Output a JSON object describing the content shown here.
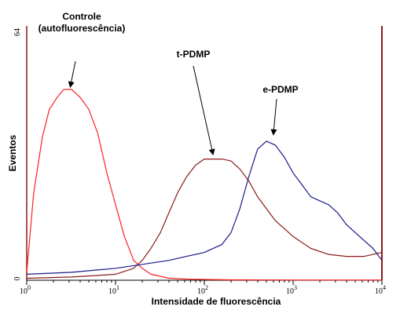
{
  "chart_data": {
    "type": "line",
    "xlabel": "Intensidade de fluorescência",
    "ylabel": "Eventos",
    "x_scale": "log",
    "xlim": [
      1,
      10000
    ],
    "ylim": [
      0,
      64
    ],
    "x_ticks": [
      {
        "value": 1,
        "base": "10",
        "exp": "0"
      },
      {
        "value": 10,
        "base": "10",
        "exp": "1"
      },
      {
        "value": 100,
        "base": "10",
        "exp": "2"
      },
      {
        "value": 1000,
        "base": "10",
        "exp": "3"
      },
      {
        "value": 10000,
        "base": "10",
        "exp": "4"
      }
    ],
    "y_ticks": [
      "0",
      "64"
    ],
    "grid": false,
    "series": [
      {
        "name": "Controle (autofluorescência)",
        "color": "#ff2020",
        "x": [
          1.0,
          1.2,
          1.5,
          1.8,
          2.2,
          2.6,
          3.2,
          4.0,
          5.0,
          6.3,
          8.0,
          10,
          12.6,
          16,
          20,
          25,
          32,
          40,
          63,
          100,
          200,
          1000,
          10000
        ],
        "y": [
          2,
          22,
          36,
          43,
          46,
          48,
          48,
          46,
          43,
          37,
          27,
          19,
          11,
          5,
          3,
          1.5,
          1,
          0.5,
          0.3,
          0.2,
          0.1,
          0.05,
          0.05
        ]
      },
      {
        "name": "t-PDMP",
        "color": "#8b1a1a",
        "x": [
          1.0,
          3.2,
          10,
          16,
          20,
          25,
          32,
          40,
          50,
          63,
          80,
          100,
          126,
          158,
          200,
          251,
          316,
          398,
          501,
          631,
          794,
          1000,
          1585,
          2512,
          3981,
          6310,
          10000
        ],
        "y": [
          0.5,
          0.8,
          1.5,
          3,
          5,
          8,
          12,
          17,
          22,
          26,
          29,
          30.5,
          30.5,
          30.5,
          30,
          28,
          25,
          21,
          18,
          15,
          13,
          11,
          8,
          6.5,
          6,
          6,
          7
        ]
      },
      {
        "name": "e-PDMP",
        "color": "#1a1a8b",
        "x": [
          1.0,
          3.2,
          10,
          20,
          40,
          63,
          100,
          158,
          200,
          251,
          316,
          398,
          501,
          631,
          794,
          1000,
          1259,
          1585,
          1995,
          2512,
          3162,
          3981,
          5012,
          6310,
          7943,
          10000
        ],
        "y": [
          1.5,
          2,
          3,
          4,
          5,
          6,
          7,
          9,
          12,
          18,
          26,
          33,
          35,
          34,
          31,
          27,
          24,
          21,
          20,
          19,
          17,
          14,
          12,
          10,
          8,
          5
        ]
      }
    ],
    "annotations": [
      {
        "text_lines": [
          "Controle",
          "(autofluorescência)"
        ],
        "target_x": 3.1,
        "target_y": 48
      },
      {
        "text_lines": [
          "t-PDMP"
        ],
        "target_x": 125,
        "target_y": 31
      },
      {
        "text_lines": [
          "e-PDMP"
        ],
        "target_x": 600,
        "target_y": 36
      }
    ],
    "axis_colors": {
      "left": "#8b1a1a",
      "right": "#8b1a1a"
    }
  }
}
